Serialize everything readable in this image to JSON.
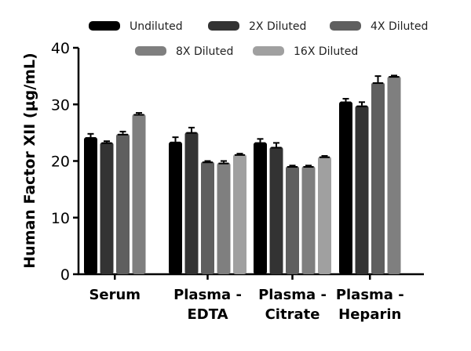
{
  "chart_data": {
    "type": "bar",
    "title": "",
    "xlabel": "",
    "ylabel": "Human Factor XII (µg/mL)",
    "ylim": [
      0,
      40
    ],
    "yticks": [
      0,
      10,
      20,
      30,
      40
    ],
    "grid": false,
    "legend_placement": "top",
    "categories": [
      [
        "Serum"
      ],
      [
        "Plasma -",
        "EDTA"
      ],
      [
        "Plasma -",
        "Citrate"
      ],
      [
        "Plasma -",
        "Heparin"
      ]
    ],
    "series": [
      {
        "name": "Undiluted",
        "color": "#000000",
        "values": [
          24.2,
          23.4,
          23.3,
          30.5
        ],
        "errors": [
          0.6,
          0.8,
          0.6,
          0.5
        ]
      },
      {
        "name": "2X Diluted",
        "color": "#333333",
        "values": [
          23.3,
          25.1,
          22.5,
          29.8
        ],
        "errors": [
          0.2,
          0.8,
          0.7,
          0.6
        ]
      },
      {
        "name": "4X Diluted",
        "color": "#5f5f5f",
        "values": [
          24.8,
          19.9,
          19.1,
          33.9
        ],
        "errors": [
          0.4,
          0.1,
          0.1,
          1.1
        ]
      },
      {
        "name": "8X Diluted",
        "color": "#7f7f7f",
        "values": [
          28.3,
          19.7,
          19.1,
          35.0
        ],
        "errors": [
          0.2,
          0.3,
          0.1,
          0.1
        ]
      },
      {
        "name": "16X Diluted",
        "color": "#a0a0a0",
        "values": [
          null,
          21.2,
          20.8,
          null
        ],
        "errors": [
          null,
          0.1,
          0.1,
          null
        ]
      }
    ]
  }
}
